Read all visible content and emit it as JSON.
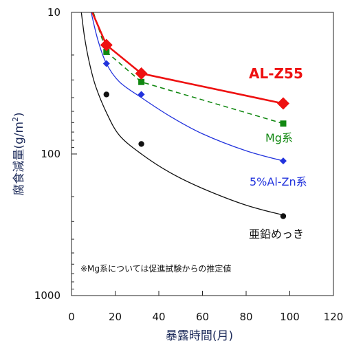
{
  "chart_data": {
    "type": "line",
    "title": "",
    "xlabel": "暴露時間(月)",
    "ylabel": "腐食減量(g/m²)",
    "ylabel_main": "腐食減量",
    "ylabel_unit_open": "(g/m",
    "ylabel_unit_sup": "2",
    "ylabel_unit_close": ")",
    "xlim": [
      0,
      120
    ],
    "x_ticks": [
      0,
      20,
      40,
      60,
      80,
      100,
      120
    ],
    "x_tick_labels": [
      "0",
      "20",
      "40",
      "60",
      "80",
      "100",
      "120"
    ],
    "y_scale": "log",
    "y_inverted": true,
    "ylim": [
      10,
      1000
    ],
    "y_ticks": [
      10,
      100,
      1000
    ],
    "y_tick_labels": [
      "10",
      "100",
      "1000"
    ],
    "grid": false,
    "note": "※Mg系については促進試験からの推定値",
    "series": [
      {
        "name": "AL-Z55",
        "color": "#ee1111",
        "marker": "diamond",
        "line_style": "solid",
        "line_kind": "polyline",
        "x": [
          16,
          32,
          97
        ],
        "y": [
          17,
          27,
          44
        ],
        "curve_x": [
          9.5,
          16,
          32,
          97
        ],
        "curve_y": [
          10,
          17,
          27,
          44
        ]
      },
      {
        "name": "Mg系",
        "color": "#118811",
        "marker": "square",
        "line_style": "dashed",
        "line_kind": "polyline",
        "x": [
          16,
          32,
          97
        ],
        "y": [
          19,
          31,
          61
        ],
        "curve_x": [
          10,
          16,
          32,
          97
        ],
        "curve_y": [
          10,
          19,
          31,
          61
        ]
      },
      {
        "name": "5%Al-Zn系",
        "color": "#2233dd",
        "marker": "diamond",
        "line_style": "solid",
        "line_kind": "fit",
        "x": [
          16,
          32,
          97
        ],
        "y": [
          23,
          38,
          112
        ],
        "curve_x": [
          9,
          12,
          16,
          22,
          32,
          45,
          60,
          80,
          97
        ],
        "curve_y": [
          10,
          15.5,
          23,
          31,
          40,
          54,
          72,
          95,
          112
        ]
      },
      {
        "name": "亜鉛めっき",
        "color": "#111111",
        "marker": "circle",
        "line_style": "solid",
        "line_kind": "fit",
        "x": [
          16,
          32,
          97
        ],
        "y": [
          38,
          85,
          275
        ],
        "curve_x": [
          4.5,
          6,
          8,
          11,
          16,
          22,
          32,
          45,
          60,
          80,
          97
        ],
        "curve_y": [
          10,
          15,
          22,
          33,
          51,
          74,
          100,
          135,
          175,
          230,
          270
        ]
      }
    ]
  }
}
